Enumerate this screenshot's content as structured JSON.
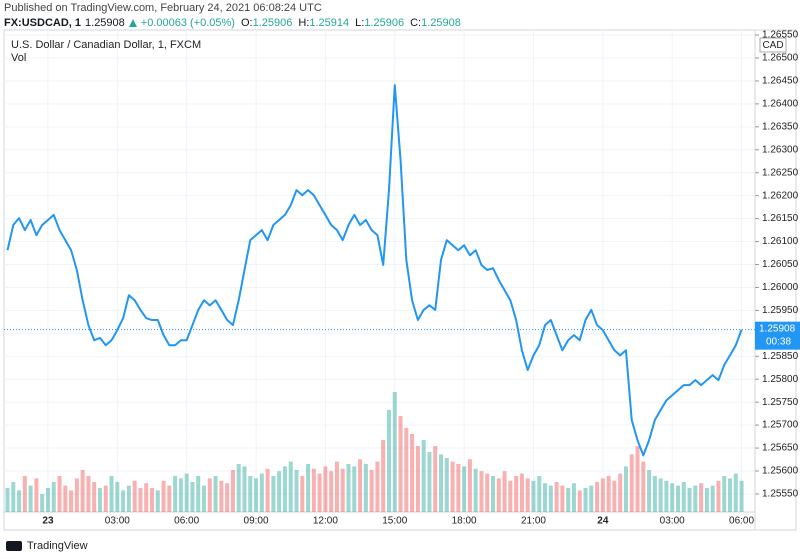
{
  "header": {
    "published": "Published on TradingView.com, February 24, 2021 06:08:24 UTC",
    "symbol": "FX:USDCAD, 1",
    "last": "1.25908",
    "change": "+0.00063 (+0.05%)",
    "ohlc": [
      {
        "label": "O:",
        "value": "1.25906"
      },
      {
        "label": "H:",
        "value": "1.25914"
      },
      {
        "label": "L:",
        "value": "1.25906"
      },
      {
        "label": "C:",
        "value": "1.25908"
      }
    ]
  },
  "chart_data": {
    "type": "line",
    "title": "U.S. Dollar / Canadian Dollar, 1, FXCM",
    "currency": "CAD",
    "countdown": "00:38",
    "grid": true,
    "categories": [
      null,
      null,
      null,
      null,
      null,
      null,
      null,
      "23",
      null,
      null,
      null,
      null,
      null,
      null,
      null,
      null,
      null,
      null,
      null,
      "03:00",
      null,
      null,
      null,
      null,
      null,
      null,
      null,
      null,
      null,
      null,
      null,
      "06:00",
      null,
      null,
      null,
      null,
      null,
      null,
      null,
      null,
      null,
      null,
      null,
      "09:00",
      null,
      null,
      null,
      null,
      null,
      null,
      null,
      null,
      null,
      null,
      null,
      "12:00",
      null,
      null,
      null,
      null,
      null,
      null,
      null,
      null,
      null,
      null,
      null,
      "15:00",
      null,
      null,
      null,
      null,
      null,
      null,
      null,
      null,
      null,
      null,
      null,
      "18:00",
      null,
      null,
      null,
      null,
      null,
      null,
      null,
      null,
      null,
      null,
      null,
      "21:00",
      null,
      null,
      null,
      null,
      null,
      null,
      null,
      null,
      null,
      null,
      null,
      "24",
      null,
      null,
      null,
      null,
      null,
      null,
      null,
      null,
      null,
      null,
      null,
      "03:00",
      null,
      null,
      null,
      null,
      null,
      null,
      null,
      null,
      null,
      null,
      null,
      "06:00"
    ],
    "series": [
      {
        "color": "#2196f3",
        "values": [
          1.26081,
          1.26136,
          1.26151,
          1.26125,
          1.26147,
          1.26114,
          1.26136,
          1.26147,
          1.26158,
          1.26125,
          1.26103,
          1.26081,
          1.26038,
          1.25972,
          1.25918,
          1.25885,
          1.2589,
          1.25874,
          1.25885,
          1.25907,
          1.25933,
          1.25983,
          1.25972,
          1.25951,
          1.25933,
          1.25929,
          1.25929,
          1.25896,
          1.25874,
          1.25874,
          1.25885,
          1.25885,
          1.25918,
          1.25951,
          1.25972,
          1.25961,
          1.25972,
          1.25951,
          1.25929,
          1.25918,
          1.25972,
          1.26038,
          1.26103,
          1.26114,
          1.26125,
          1.26103,
          1.26136,
          1.26147,
          1.26158,
          1.26179,
          1.26212,
          1.26201,
          1.26212,
          1.26201,
          1.26179,
          1.26158,
          1.26136,
          1.26125,
          1.26103,
          1.26136,
          1.26158,
          1.26136,
          1.26147,
          1.26125,
          1.26114,
          1.26049,
          1.26212,
          1.26441,
          1.26278,
          1.2606,
          1.25972,
          1.25929,
          1.25951,
          1.25961,
          1.25951,
          1.2606,
          1.26103,
          1.26092,
          1.26081,
          1.26092,
          1.2607,
          1.26081,
          1.26049,
          1.26038,
          1.26042,
          1.26016,
          1.25994,
          1.25972,
          1.25929,
          1.25863,
          1.2582,
          1.25852,
          1.25874,
          1.25918,
          1.25929,
          1.25896,
          1.25863,
          1.25885,
          1.25896,
          1.25885,
          1.25929,
          1.25951,
          1.25918,
          1.25907,
          1.25885,
          1.25863,
          1.25852,
          1.25863,
          1.25711,
          1.25667,
          1.25634,
          1.25667,
          1.25711,
          1.25733,
          1.25754,
          1.25765,
          1.25776,
          1.25787,
          1.25787,
          1.25798,
          1.25787,
          1.25798,
          1.25809,
          1.25798,
          1.25831,
          1.25852,
          1.25874,
          1.25908
        ]
      },
      {
        "name": "Vol",
        "type": "bar",
        "axis": "y2",
        "up_color": "#26a69a",
        "down_color": "#ef5350",
        "values": [
          20,
          25,
          18,
          30,
          22,
          28,
          15,
          20,
          25,
          30,
          22,
          18,
          28,
          35,
          30,
          25,
          20,
          22,
          30,
          25,
          18,
          22,
          26,
          20,
          24,
          20,
          18,
          26,
          22,
          30,
          28,
          32,
          25,
          30,
          22,
          28,
          30,
          26,
          24,
          35,
          40,
          38,
          30,
          28,
          32,
          36,
          30,
          34,
          38,
          42,
          35,
          30,
          40,
          36,
          32,
          38,
          34,
          42,
          36,
          40,
          38,
          44,
          40,
          35,
          42,
          60,
          85,
          100,
          80,
          70,
          65,
          55,
          60,
          50,
          55,
          48,
          45,
          42,
          40,
          38,
          44,
          36,
          34,
          32,
          30,
          28,
          34,
          26,
          30,
          32,
          28,
          26,
          30,
          24,
          22,
          25,
          22,
          20,
          24,
          18,
          20,
          22,
          25,
          28,
          30,
          26,
          32,
          38,
          48,
          55,
          42,
          35,
          30,
          28,
          26,
          24,
          22,
          25,
          20,
          22,
          24,
          20,
          22,
          26,
          30,
          28,
          32,
          26
        ]
      }
    ],
    "ylim": [
      1.25515,
      1.26561
    ],
    "yticks": [
      {
        "value": 1.2555,
        "label": "1.25550"
      },
      {
        "value": 1.256,
        "label": "1.25600"
      },
      {
        "value": 1.2565,
        "label": "1.25650"
      },
      {
        "value": 1.257,
        "label": "1.25700"
      },
      {
        "value": 1.2575,
        "label": "1.25750"
      },
      {
        "value": 1.258,
        "label": "1.25800"
      },
      {
        "value": 1.2585,
        "label": "1.25850"
      },
      {
        "value": 1.259,
        "label": "1.25900"
      },
      {
        "value": 1.2595,
        "label": "1.25950"
      },
      {
        "value": 1.26,
        "label": "1.26000"
      },
      {
        "value": 1.2605,
        "label": "1.26050"
      },
      {
        "value": 1.261,
        "label": "1.26100"
      },
      {
        "value": 1.2615,
        "label": "1.26150"
      },
      {
        "value": 1.262,
        "label": "1.26200"
      },
      {
        "value": 1.2625,
        "label": "1.26250"
      },
      {
        "value": 1.263,
        "label": "1.26300"
      },
      {
        "value": 1.2635,
        "label": "1.26350"
      },
      {
        "value": 1.264,
        "label": "1.26400"
      },
      {
        "value": 1.2645,
        "label": "1.26450"
      },
      {
        "value": 1.265,
        "label": "1.26500"
      },
      {
        "value": 1.2655,
        "label": "1.26550"
      }
    ],
    "y2lim": [
      0,
      100
    ]
  },
  "footer": "TradingView"
}
